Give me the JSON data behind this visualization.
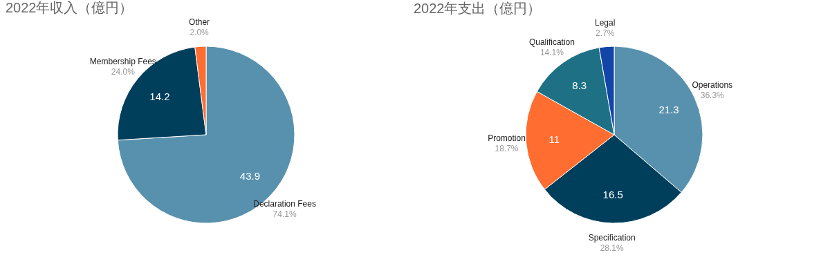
{
  "chart_data": [
    {
      "type": "pie",
      "title": "2022年収入（億円）",
      "categories": [
        "Declaration Fees",
        "Membership Fees",
        "Other"
      ],
      "values": [
        43.9,
        14.2,
        1.2
      ],
      "colors": [
        "#5891ad",
        "#003f5c",
        "#ff6d31"
      ],
      "value_labels": [
        "43.9",
        "14.2",
        null
      ],
      "annotations": [
        {
          "text": "74.1%",
          "x": "Declaration Fees"
        },
        {
          "text": "24.0%",
          "x": "Membership Fees"
        },
        {
          "text": "2.0%",
          "x": "Other"
        }
      ]
    },
    {
      "type": "pie",
      "title": "2022年支出（億円）",
      "categories": [
        "Operations",
        "Specification",
        "Promotion",
        "Qualification",
        "Legal"
      ],
      "values": [
        21.3,
        16.5,
        11,
        8.3,
        1.6
      ],
      "colors": [
        "#5891ad",
        "#003f5c",
        "#ff6d31",
        "#1e7185",
        "#1344a8"
      ],
      "value_labels": [
        "21.3",
        "16.5",
        "11",
        "8.3",
        null
      ],
      "annotations": [
        {
          "text": "36.3%",
          "x": "Operations"
        },
        {
          "text": "28.1%",
          "x": "Specification"
        },
        {
          "text": "18.7%",
          "x": "Promotion"
        },
        {
          "text": "14.1%",
          "x": "Qualification"
        },
        {
          "text": "2.7%",
          "x": "Legal"
        }
      ]
    }
  ]
}
